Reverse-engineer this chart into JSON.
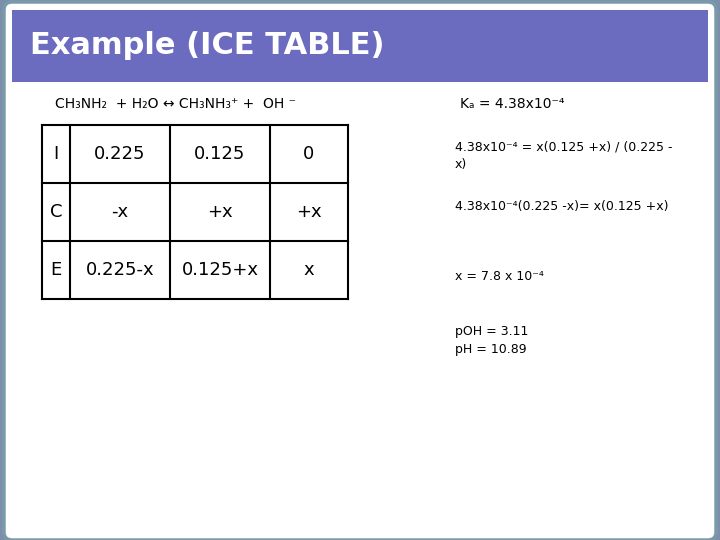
{
  "title": "Example (ICE TABLE)",
  "title_bg": "#6B6BBF",
  "title_color": "#FFFFFF",
  "title_fontsize": 22,
  "bg_color": "#FFFFFF",
  "outer_bg": "#7B8FAA",
  "table_rows": [
    [
      "I",
      "0.225",
      "0.125",
      "0"
    ],
    [
      "C",
      "-x",
      "+x",
      "+x"
    ],
    [
      "E",
      "0.225-x",
      "0.125+x",
      "x"
    ]
  ],
  "annotation_fontsize": 9,
  "table_fontsize": 13,
  "eq_fontsize": 10,
  "ka_fontsize": 10
}
